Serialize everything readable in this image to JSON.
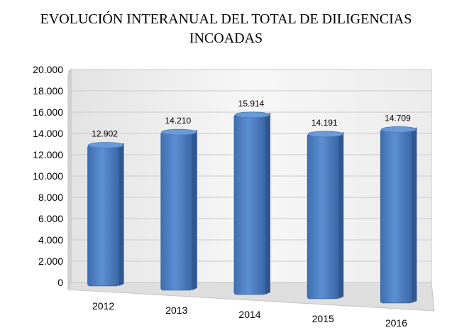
{
  "chart_data": {
    "type": "bar",
    "title_line1": "EVOLUCIÓN INTERANUAL DEL TOTAL DE DILIGENCIAS",
    "title_line2": "INCOADAS",
    "categories": [
      "2012",
      "2013",
      "2014",
      "2015",
      "2016"
    ],
    "values": [
      12902,
      14210,
      15914,
      14191,
      14709
    ],
    "data_labels": [
      "12.902",
      "14.210",
      "15.914",
      "14.191",
      "14.709"
    ],
    "yticks": [
      0,
      2000,
      4000,
      6000,
      8000,
      10000,
      12000,
      14000,
      16000,
      18000,
      20000
    ],
    "ytick_labels": [
      "0",
      "2.000",
      "4.000",
      "6.000",
      "8.000",
      "10.000",
      "12.000",
      "14.000",
      "16.000",
      "18.000",
      "20.000"
    ],
    "ylim": [
      0,
      20000
    ],
    "xlabel": "",
    "ylabel": "",
    "grid": true,
    "bar_color": "#4a7cc0"
  }
}
